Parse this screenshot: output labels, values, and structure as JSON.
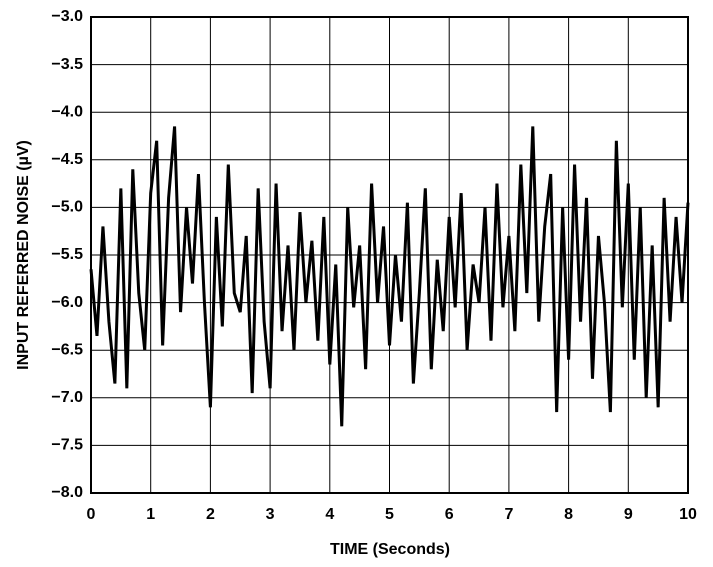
{
  "chart_data": {
    "type": "line",
    "x_label": "TIME (Seconds)",
    "y_label": "INPUT REFERRED NOISE (µV)",
    "x": [
      0,
      0.1,
      0.2,
      0.3,
      0.4,
      0.5,
      0.6,
      0.7,
      0.8,
      0.9,
      1,
      1.1,
      1.2,
      1.3,
      1.4,
      1.5,
      1.6,
      1.7,
      1.8,
      1.9,
      2,
      2.1,
      2.2,
      2.3,
      2.4,
      2.5,
      2.6,
      2.7,
      2.8,
      2.9,
      3,
      3.1,
      3.2,
      3.3,
      3.4,
      3.5,
      3.6,
      3.7,
      3.8,
      3.9,
      4,
      4.1,
      4.2,
      4.3,
      4.4,
      4.5,
      4.6,
      4.7,
      4.8,
      4.9,
      5,
      5.1,
      5.2,
      5.3,
      5.4,
      5.5,
      5.6,
      5.7,
      5.8,
      5.9,
      6,
      6.1,
      6.2,
      6.3,
      6.4,
      6.5,
      6.6,
      6.7,
      6.8,
      6.9,
      7,
      7.1,
      7.2,
      7.3,
      7.4,
      7.5,
      7.6,
      7.7,
      7.8,
      7.9,
      8,
      8.1,
      8.2,
      8.3,
      8.4,
      8.5,
      8.6,
      8.7,
      8.8,
      8.9,
      9,
      9.1,
      9.2,
      9.3,
      9.4,
      9.5,
      9.6,
      9.7,
      9.8,
      9.9,
      10
    ],
    "series": [
      {
        "color": "#000000",
        "values": [
          -5.65,
          -6.35,
          -5.2,
          -6.2,
          -6.85,
          -4.8,
          -6.9,
          -4.6,
          -5.9,
          -6.5,
          -4.85,
          -4.3,
          -6.45,
          -4.9,
          -4.15,
          -6.1,
          -5.0,
          -5.8,
          -4.65,
          -6.0,
          -7.1,
          -5.1,
          -6.25,
          -4.55,
          -5.9,
          -6.1,
          -5.3,
          -6.95,
          -4.8,
          -6.2,
          -6.9,
          -4.75,
          -6.3,
          -5.4,
          -6.5,
          -5.05,
          -6.0,
          -5.35,
          -6.4,
          -5.1,
          -6.65,
          -5.6,
          -7.3,
          -5.0,
          -6.05,
          -5.4,
          -6.7,
          -4.75,
          -6.0,
          -5.2,
          -6.45,
          -5.5,
          -6.2,
          -4.95,
          -6.85,
          -5.9,
          -4.8,
          -6.7,
          -5.55,
          -6.3,
          -5.1,
          -6.05,
          -4.85,
          -6.5,
          -5.6,
          -6.0,
          -5.0,
          -6.4,
          -4.75,
          -6.05,
          -5.3,
          -6.3,
          -4.55,
          -5.9,
          -4.15,
          -6.2,
          -5.2,
          -4.65,
          -7.15,
          -5.0,
          -6.6,
          -4.55,
          -6.2,
          -4.9,
          -6.8,
          -5.3,
          -6.0,
          -7.15,
          -4.3,
          -6.05,
          -4.75,
          -6.6,
          -5.0,
          -7.0,
          -5.4,
          -7.1,
          -4.9,
          -6.2,
          -5.1,
          -6.0,
          -4.95
        ]
      }
    ],
    "xlim": [
      0,
      10
    ],
    "xticks": [
      0,
      1,
      2,
      3,
      4,
      5,
      6,
      7,
      8,
      9,
      10
    ],
    "ylim": [
      -8,
      -3
    ],
    "yticks": [
      {
        "value": -8,
        "label": "−8.0"
      },
      {
        "value": -7.5,
        "label": "−7.5"
      },
      {
        "value": -7,
        "label": "−7.0"
      },
      {
        "value": -6.5,
        "label": "−6.5"
      },
      {
        "value": -6,
        "label": "−6.0"
      },
      {
        "value": -5.5,
        "label": "−5.5"
      },
      {
        "value": -5,
        "label": "−5.0"
      },
      {
        "value": -4.5,
        "label": "−4.5"
      },
      {
        "value": -4,
        "label": "−4.0"
      },
      {
        "value": -3.5,
        "label": "−3.5"
      },
      {
        "value": -3,
        "label": "−3.0"
      }
    ],
    "grid": true
  }
}
